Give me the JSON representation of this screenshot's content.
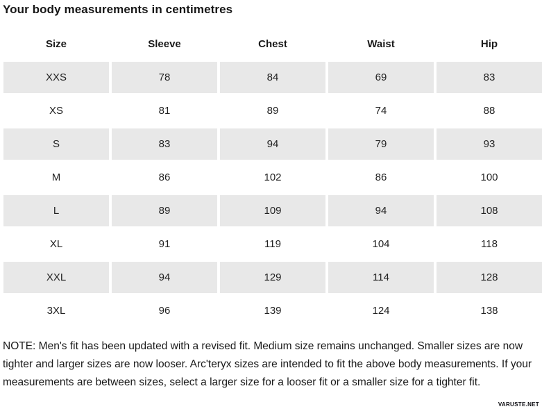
{
  "title": "Your body measurements in centimetres",
  "chart_data": {
    "type": "table",
    "title": "Your body measurements in centimetres",
    "units": "centimetres",
    "columns": [
      "Size",
      "Sleeve",
      "Chest",
      "Waist",
      "Hip"
    ],
    "rows": [
      [
        "XXS",
        "78",
        "84",
        "69",
        "83"
      ],
      [
        "XS",
        "81",
        "89",
        "74",
        "88"
      ],
      [
        "S",
        "83",
        "94",
        "79",
        "93"
      ],
      [
        "M",
        "86",
        "102",
        "86",
        "100"
      ],
      [
        "L",
        "89",
        "109",
        "94",
        "108"
      ],
      [
        "XL",
        "91",
        "119",
        "104",
        "118"
      ],
      [
        "XXL",
        "94",
        "129",
        "114",
        "128"
      ],
      [
        "3XL",
        "96",
        "139",
        "124",
        "138"
      ]
    ]
  },
  "note": "NOTE: Men's fit has been updated with a revised fit. Medium size remains unchanged. Smaller sizes are now tighter and larger sizes are now looser. Arc'teryx sizes are intended to fit the above body measurements. If your measurements are between sizes, select a larger size for a looser fit or a smaller size for a tighter fit.",
  "watermark": "VARUSTE.NET",
  "colors": {
    "row_shaded": "#e8e8e8",
    "text": "#1a1a1a",
    "background": "#ffffff"
  }
}
